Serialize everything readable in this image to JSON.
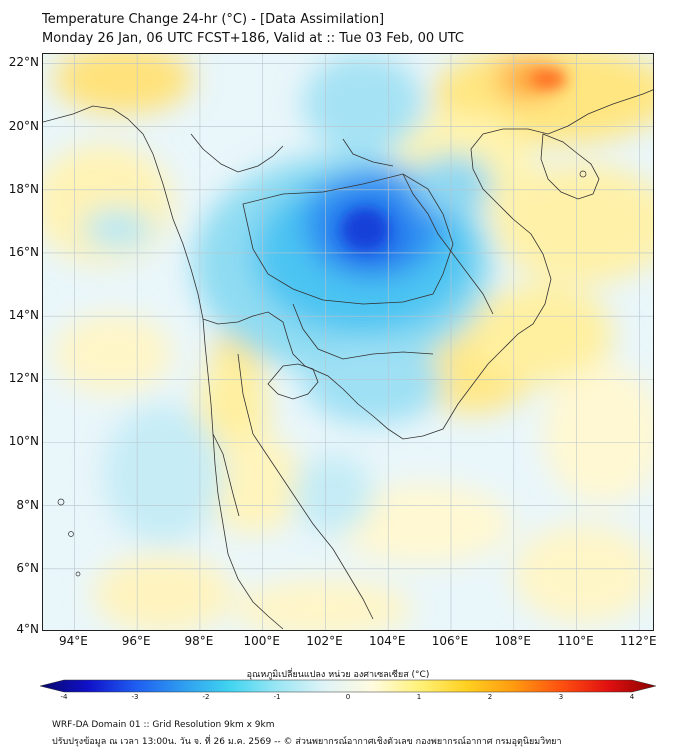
{
  "title": {
    "line1": "Temperature Change 24-hr (°C) - [Data Assimilation]",
    "line2": "Monday 26 Jan, 06 UTC FCST+186, Valid at :: Tue 03 Feb, 00 UTC"
  },
  "map": {
    "lat_labels": [
      "22°N",
      "20°N",
      "18°N",
      "16°N",
      "14°N",
      "12°N",
      "10°N",
      "8°N",
      "6°N",
      "4°N"
    ],
    "lon_labels": [
      "94°E",
      "96°E",
      "98°E",
      "100°E",
      "102°E",
      "104°E",
      "106°E",
      "108°E",
      "110°E",
      "112°E"
    ],
    "lat_values": [
      22,
      20,
      18,
      16,
      14,
      12,
      10,
      8,
      6,
      4
    ],
    "lon_values": [
      94,
      96,
      98,
      100,
      102,
      104,
      106,
      108,
      110,
      112
    ],
    "lat_range": [
      4,
      22.3
    ],
    "lon_range": [
      93,
      112.5
    ]
  },
  "colorbar": {
    "title": "อุณหภูมิเปลี่ยนแปลง หน่วย องศาเซลเซียส (°C)",
    "ticks": [
      "-4",
      "-3",
      "-2",
      "-1",
      "0",
      "1",
      "2",
      "3",
      "4"
    ],
    "range": [
      -4,
      4
    ],
    "colors": [
      "#08086b",
      "#1010c8",
      "#1e5cf0",
      "#2e9cf0",
      "#40d4f0",
      "#9ae6f4",
      "#dff3f7",
      "#fffbe0",
      "#fff27a",
      "#ffd020",
      "#ff9a10",
      "#ff5010",
      "#e01010",
      "#880000"
    ]
  },
  "footer": {
    "line1": "WRF-DA Domain 01 :: Grid Resolution 9km x 9km",
    "line2": "ปรับปรุงข้อมูล ณ เวลา 13:00น. วัน จ. ที่ 26 ม.ค. 2569 -- © ส่วนพยากรณ์อากาศเชิงตัวเลข กองพยากรณ์อากาศ กรมอุตุนิยมวิทยา"
  }
}
